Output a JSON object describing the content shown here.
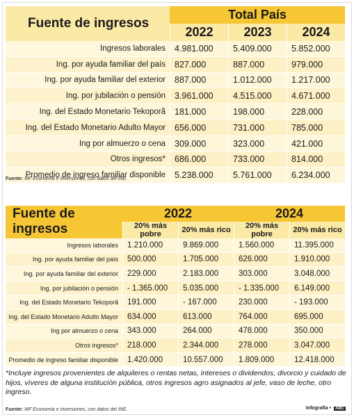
{
  "table1": {
    "title": "Fuente de ingresos",
    "group_header": "Total País",
    "years": [
      "2022",
      "2023",
      "2024"
    ],
    "rows": [
      {
        "label": "Ingresos laborales",
        "values": [
          "4.981.000",
          "5.409.000",
          "5.852.000"
        ]
      },
      {
        "label": "Ing. por ayuda familiar del país",
        "values": [
          "827.000",
          "887.000",
          "979.000"
        ]
      },
      {
        "label": "Ing. por ayuda familiar del exterior",
        "values": [
          "887.000",
          "1.012.000",
          "1.217.000"
        ]
      },
      {
        "label": "Ing. por jubilación o pensión",
        "values": [
          "3.961.000",
          "4.515.000",
          "4.671.000"
        ]
      },
      {
        "label": "Ing. del Estado Monetario Tekoporã",
        "values": [
          "181.000",
          "198.000",
          "228.000"
        ]
      },
      {
        "label": "Ing. del Estado Monetario Adulto Mayor",
        "values": [
          "656.000",
          "731.000",
          "785.000"
        ]
      },
      {
        "label": "Ing por almuerzo o cena",
        "values": [
          "309.000",
          "323.000",
          "421.000"
        ]
      },
      {
        "label": "Otros ingresos*",
        "values": [
          "686.000",
          "733.000",
          "814.000"
        ]
      },
      {
        "label": "Promedio de ingreso familiar disponible",
        "values": [
          "5.238.000",
          "5.761.000",
          "6.234.000"
        ]
      }
    ],
    "source_label": "Fuente:",
    "source_text": "MF Economía e Inversiones, con datos del INE."
  },
  "table2": {
    "title": "Fuente de ingresos",
    "years": [
      "2022",
      "2024"
    ],
    "subheaders": [
      "20% más pobre",
      "20% más rico",
      "20% más pobre",
      "20% más rico"
    ],
    "rows": [
      {
        "label": "Ingresos laborales",
        "values": [
          "1.210.000",
          "9.869.000",
          "1.560.000",
          "11.395.000"
        ]
      },
      {
        "label": "Ing. por ayuda familiar del país",
        "values": [
          "500.000",
          "1.705.000",
          "626.000",
          "1.910.000"
        ]
      },
      {
        "label": "Ing. por ayuda familiar del exterior",
        "values": [
          "229.000",
          "2.183.000",
          "303.000",
          "3.048.000"
        ]
      },
      {
        "label": "Ing. por jubilación o pensión",
        "values": [
          "- 1.365.000",
          "5.035.000",
          "- 1.335.000",
          "6.149.000"
        ]
      },
      {
        "label": "Ing. del Estado Monetario Tekoporã",
        "values": [
          "191.000",
          "- 167.000",
          "230.000",
          "- 193.000"
        ]
      },
      {
        "label": "Ing. del Estado Monetario Adulto Mayor",
        "values": [
          "634.000",
          "613.000",
          "764.000",
          "695.000"
        ]
      },
      {
        "label": "Ing por almuerzo o cena",
        "values": [
          "343.000",
          "264.000",
          "478.000",
          "350.000"
        ]
      },
      {
        "label": "Otros ingresos*",
        "values": [
          "218.000",
          "2.344.000",
          "278.000",
          "3.047.000"
        ]
      },
      {
        "label": "Promedio de ingreso familiar disponible",
        "values": [
          "1.420.000",
          "10.557.000",
          "1.809.000",
          "12.418.000"
        ]
      }
    ],
    "source_label": "Fuente:",
    "source_text": "MF Economía e Inversiones, con datos del INE."
  },
  "footnote": "*Incluye ingresos provenientes de alquileres o rentas netas, intereses o dividendos, divorcio y cuidado de hijos, víveres de alguna institución pública, otros ingresos agro asignados al jefe, vaso de leche, otro ingreso.",
  "credit": {
    "label": "Infografía •",
    "logo": "ABC"
  },
  "colors": {
    "header_yellow": "#f7c635",
    "header_light": "#fbe9a6",
    "row_light": "#fef6d8",
    "row_dark": "#fdf0c4"
  }
}
